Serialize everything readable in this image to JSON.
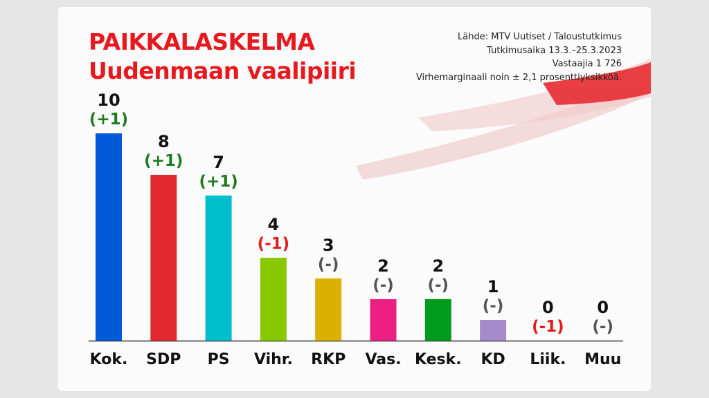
{
  "title_line1": "PAIKKALASKELMA",
  "title_line2": "Uudenmaan vaalipiiri",
  "meta": [
    "Lähde: MTV Uutiset / Taloustutkimus",
    "Tutkimusaika 13.3.–25.3.2023",
    "Vastaajia 1 726",
    "Virhemarginaali noin ± 2,1 prosenttiyksikköä."
  ],
  "chart_data": {
    "type": "bar",
    "categories": [
      "Kok.",
      "SDP",
      "PS",
      "Vihr.",
      "RKP",
      "Vas.",
      "Kesk.",
      "KD",
      "Liik.",
      "Muu"
    ],
    "values": [
      10,
      8,
      7,
      4,
      3,
      2,
      2,
      1,
      0,
      0
    ],
    "changes": [
      "(+1)",
      "(+1)",
      "(+1)",
      "(-1)",
      "(-)",
      "(-)",
      "(-)",
      "(-)",
      "(-1)",
      "(-)"
    ],
    "colors": [
      "#0059d6",
      "#e2282f",
      "#00bfcc",
      "#88c800",
      "#dbb000",
      "#ee1f82",
      "#009a1c",
      "#a68bcc",
      "#cccccc",
      "#cccccc"
    ],
    "change_colors": {
      "up": "#1e7b1e",
      "down": "#e21b1b",
      "none": "#555555"
    },
    "title": "PAIKKALASKELMA",
    "xlabel": "",
    "ylabel": "",
    "ylim": [
      0,
      10
    ],
    "grid": false,
    "legend": "none"
  }
}
